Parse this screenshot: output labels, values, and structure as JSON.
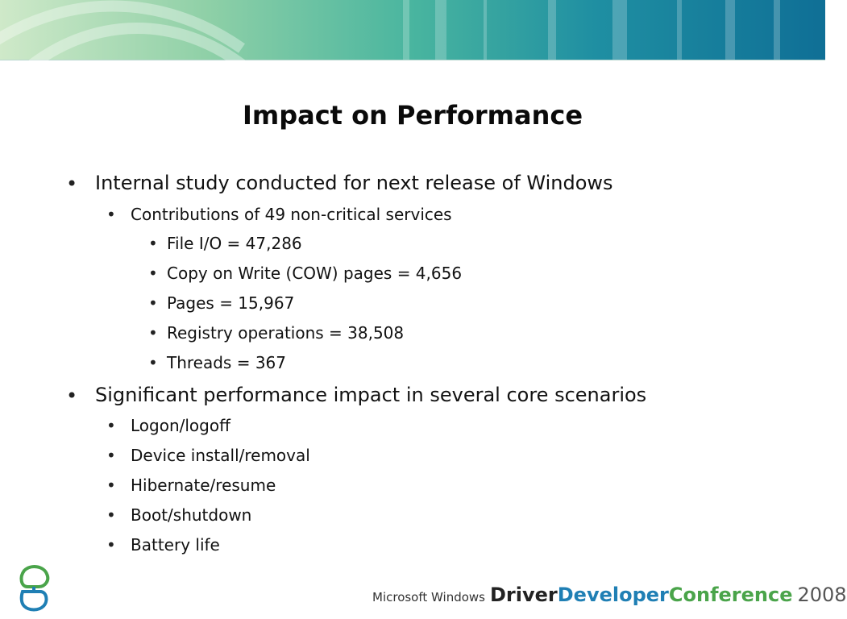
{
  "slide": {
    "title": "Impact on Performance",
    "bullets": [
      {
        "text": "Internal study conducted for next release of Windows",
        "children": [
          {
            "text": "Contributions of 49 non-critical services",
            "children": [
              {
                "text": "File I/O = 47,286"
              },
              {
                "text": "Copy on Write (COW) pages = 4,656"
              },
              {
                "text": "Pages = 15,967"
              },
              {
                "text": "Registry operations = 38,508"
              },
              {
                "text": "Threads = 367"
              }
            ]
          }
        ]
      },
      {
        "text": "Significant performance impact in several core scenarios",
        "children": [
          {
            "text": "Logon/logoff"
          },
          {
            "text": "Device install/removal"
          },
          {
            "text": "Hibernate/resume"
          },
          {
            "text": "Boot/shutdown"
          },
          {
            "text": "Battery life"
          }
        ]
      }
    ]
  },
  "footer": {
    "microsoft_windows": "Microsoft Windows",
    "driver": "Driver",
    "developer": "Developer",
    "conference": "Conference",
    "year": "2008"
  },
  "colors": {
    "developer": "#1f7fb4",
    "conference": "#4aa44a"
  },
  "icons": {
    "logo": "conference-logo-icon"
  }
}
